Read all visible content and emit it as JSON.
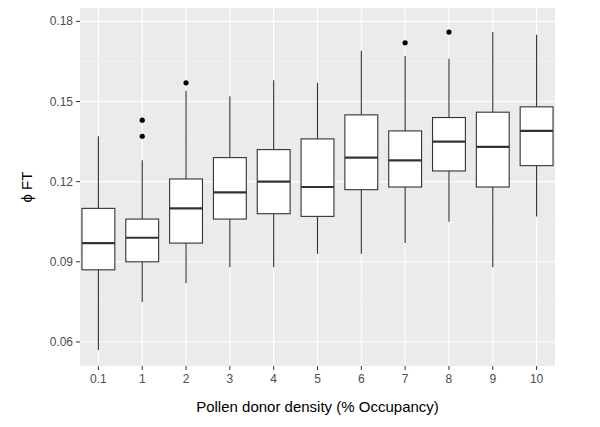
{
  "chart_data": {
    "type": "box",
    "x_label": "Pollen donor density (% Occupancy)",
    "y_label": "ϕ FT",
    "categories": [
      "0.1",
      "1",
      "2",
      "3",
      "4",
      "5",
      "6",
      "7",
      "8",
      "9",
      "10"
    ],
    "whisker_low": [
      0.057,
      0.075,
      0.082,
      0.088,
      0.088,
      0.093,
      0.093,
      0.097,
      0.105,
      0.088,
      0.107
    ],
    "q1": [
      0.087,
      0.09,
      0.097,
      0.106,
      0.108,
      0.107,
      0.117,
      0.118,
      0.124,
      0.118,
      0.126
    ],
    "median": [
      0.097,
      0.099,
      0.11,
      0.116,
      0.12,
      0.118,
      0.129,
      0.128,
      0.135,
      0.133,
      0.139
    ],
    "q3": [
      0.11,
      0.106,
      0.121,
      0.129,
      0.132,
      0.136,
      0.145,
      0.139,
      0.144,
      0.146,
      0.148
    ],
    "whisker_high": [
      0.137,
      0.128,
      0.154,
      0.152,
      0.158,
      0.157,
      0.169,
      0.167,
      0.166,
      0.176,
      0.175
    ],
    "outliers": [
      [],
      [
        0.137,
        0.143
      ],
      [
        0.157
      ],
      [],
      [],
      [],
      [],
      [
        0.172
      ],
      [
        0.176
      ],
      [],
      []
    ],
    "color": "#333333",
    "ylim": [
      0.051,
      0.185
    ],
    "yticks": [
      0.06,
      0.09,
      0.12,
      0.15,
      0.18
    ],
    "grid": true
  }
}
